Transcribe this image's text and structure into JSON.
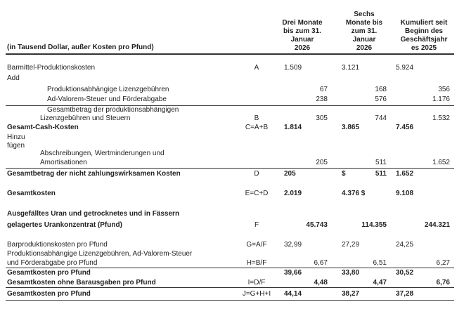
{
  "header": {
    "unit_note": "(in Tausend Dollar, außer Kosten pro Pfund)",
    "columns": [
      [
        "Drei Monate",
        "bis zum 31.",
        "Januar",
        "2026"
      ],
      [
        "Sechs",
        "Monate bis",
        "zum 31.",
        "Januar",
        "2026"
      ],
      [
        "Kumuliert seit",
        "Beginn des",
        "Geschäftsjahr",
        "es 2025"
      ]
    ]
  },
  "rows": [
    {
      "label": [
        "Barmittel-Produktionskosten"
      ],
      "formula": "A",
      "values": [
        "1.509",
        "3.121",
        "5.924"
      ]
    },
    {
      "label": [
        "Add"
      ],
      "formula": "",
      "values": [
        "",
        "",
        ""
      ]
    },
    {
      "label": [
        "Produktionsabhängige Lizenzgebühren"
      ],
      "formula": "",
      "values": [
        "67",
        "168",
        "356"
      ]
    },
    {
      "label": [
        "Ad-Valorem-Steuer und Förderabgabe"
      ],
      "formula": "",
      "values": [
        "238",
        "576",
        "1.176"
      ]
    },
    {
      "label": [
        "Gesamtbetrag der produktionsabhängigen",
        "Lizenzgebühren und Steuern"
      ],
      "formula": "B",
      "values": [
        "305",
        "744",
        "1.532"
      ]
    },
    {
      "label": [
        "Gesamt-Cash-Kosten"
      ],
      "formula": "C=A+B",
      "values": [
        "1.814",
        "3.865",
        "7.456"
      ]
    },
    {
      "label": [
        "Hinzu",
        "fügen"
      ],
      "formula": "",
      "values": [
        "",
        "",
        ""
      ]
    },
    {
      "label": [
        "Abschreibungen, Wertminderungen und",
        "Amortisationen"
      ],
      "formula": "",
      "values": [
        "205",
        "511",
        "1.652"
      ]
    },
    {
      "label": [
        "Gesamtbetrag der nicht zahlungswirksamen Kosten"
      ],
      "formula": "D",
      "values": [
        "205",
        "511",
        "1.652"
      ],
      "currency": "$"
    },
    {
      "label": [
        "Gesamtkosten"
      ],
      "formula": "E=C+D",
      "values": [
        "2.019",
        "4.376 $",
        "9.108"
      ]
    },
    {
      "label": [
        "Ausgefälltes Uran und getrocknetes und in Fässern",
        "gelagertes Urankonzentrat (Pfund)"
      ],
      "formula": "F",
      "values": [
        "45.743",
        "114.355",
        "244.321"
      ]
    },
    {
      "label": [
        "Barproduktionskosten pro Pfund"
      ],
      "formula": "G=A/F",
      "values": [
        "32,99",
        "27,29",
        "24,25"
      ]
    },
    {
      "label": [
        "Produktionsabhängige Lizenzgebühren, Ad-Valorem-Steuer",
        "und Förderabgabe pro Pfund"
      ],
      "formula": "H=B/F",
      "values": [
        "6,67",
        "6,51",
        "6,27"
      ]
    },
    {
      "label": [
        "Gesamtkosten pro Pfund"
      ],
      "formula": "",
      "values": [
        "39,66",
        "33,80",
        "30,52"
      ]
    },
    {
      "label": [
        "Gesamtkosten ohne Barausgaben pro Pfund"
      ],
      "formula": "I=D/F",
      "values": [
        "4,48",
        "4,47",
        "6,76"
      ]
    },
    {
      "label": [
        "Gesamtkosten pro Pfund"
      ],
      "formula": "J=G+H+I",
      "values": [
        "44,14",
        "38,27",
        "37,28"
      ]
    }
  ]
}
